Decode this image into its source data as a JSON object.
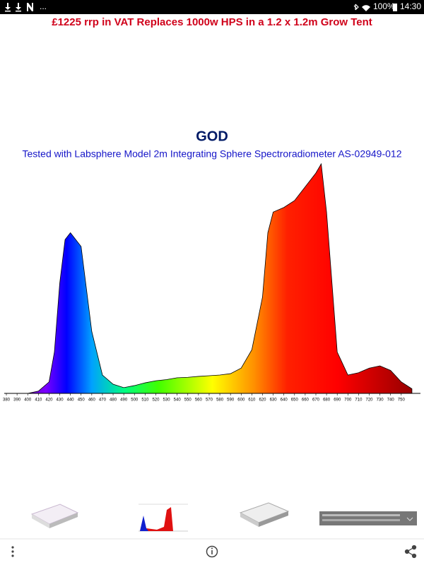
{
  "status_bar": {
    "left": "...",
    "battery": "100%",
    "time": "14:30"
  },
  "header": {
    "banner": "£1225 rrp in VAT  Replaces 1000w HPS in a 1.2 x 1.2m Grow Tent"
  },
  "chart_data": {
    "type": "area",
    "title": "GOD",
    "subtitle": "Tested with Labsphere Model 2m Integrating Sphere Spectroradiometer AS-02949-012",
    "x": [
      380,
      390,
      400,
      410,
      420,
      425,
      430,
      435,
      440,
      445,
      450,
      460,
      470,
      480,
      490,
      500,
      510,
      520,
      530,
      540,
      550,
      560,
      570,
      580,
      590,
      600,
      610,
      620,
      625,
      630,
      640,
      650,
      660,
      670,
      675,
      680,
      690,
      700,
      710,
      720,
      730,
      740,
      750,
      760
    ],
    "values": [
      0,
      0,
      0,
      1,
      5,
      18,
      48,
      67,
      70,
      67,
      64,
      27,
      8,
      4,
      2.5,
      3.4,
      4.6,
      5.5,
      6,
      6.8,
      7,
      7.4,
      7.7,
      8,
      8.6,
      11,
      19,
      42,
      70,
      79,
      81,
      84,
      90,
      96,
      100,
      79,
      18,
      8,
      9,
      11,
      12,
      10,
      5,
      2
    ],
    "xlim": [
      378,
      768
    ],
    "ylim": [
      0,
      100
    ],
    "xticks": [
      380,
      390,
      400,
      410,
      420,
      430,
      440,
      450,
      460,
      470,
      480,
      490,
      500,
      510,
      520,
      530,
      540,
      550,
      560,
      570,
      580,
      590,
      600,
      610,
      620,
      630,
      640,
      650,
      660,
      670,
      680,
      690,
      700,
      710,
      720,
      730,
      740,
      750
    ]
  }
}
